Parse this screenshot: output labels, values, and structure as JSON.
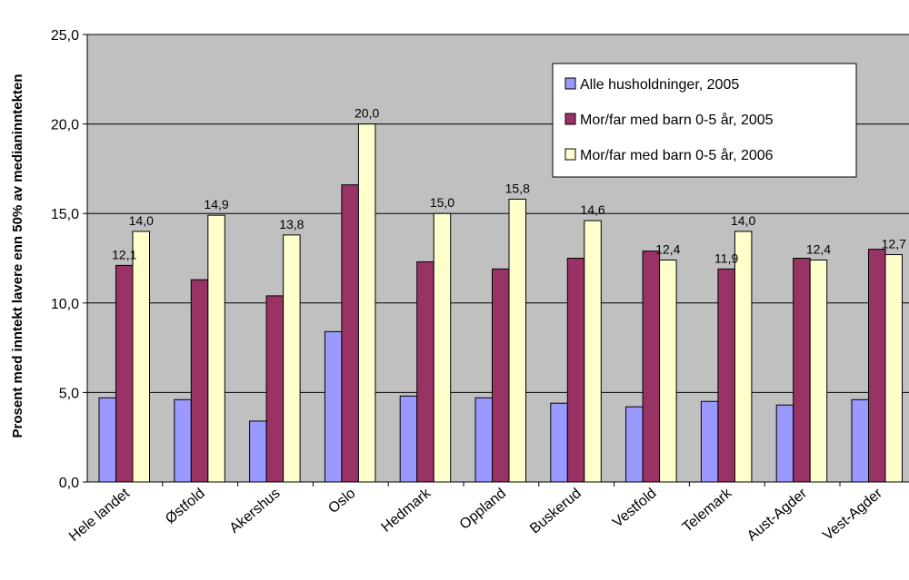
{
  "chart_data": {
    "type": "bar",
    "title": "",
    "xlabel": "",
    "ylabel": "Prosent med inntekt lavere enn 50% av medianinntekten",
    "ylim": [
      0,
      25
    ],
    "yticks": [
      0,
      5,
      10,
      15,
      20,
      25
    ],
    "ytick_labels": [
      "0,0",
      "5,0",
      "10,0",
      "15,0",
      "20,0",
      "25,0"
    ],
    "grid": true,
    "legend_position": "top-right",
    "plot_background": "#C0C0C0",
    "categories": [
      "Hele landet",
      "Østfold",
      "Akershus",
      "Oslo",
      "Hedmark",
      "Oppland",
      "Buskerud",
      "Vestfold",
      "Telemark",
      "Aust-Agder",
      "Vest-Agder"
    ],
    "series": [
      {
        "name": "Alle husholdninger, 2005",
        "color": "#9999FF",
        "values": [
          4.7,
          4.6,
          3.4,
          8.4,
          4.8,
          4.7,
          4.4,
          4.2,
          4.5,
          4.3,
          4.6
        ],
        "labels": [
          "",
          "",
          "",
          "",
          "",
          "",
          "",
          "",
          "",
          "",
          ""
        ]
      },
      {
        "name": "Mor/far med barn 0-5 år, 2005",
        "color": "#993366",
        "values": [
          12.1,
          11.3,
          10.4,
          16.6,
          12.3,
          11.9,
          12.5,
          12.9,
          11.9,
          12.5,
          13.0
        ],
        "labels": [
          "12,1",
          "",
          "",
          "",
          "",
          "",
          "",
          "",
          "11,9",
          "",
          ""
        ]
      },
      {
        "name": "Mor/far med barn 0-5 år, 2006",
        "color": "#FFFFCC",
        "values": [
          14.0,
          14.9,
          13.8,
          20.0,
          15.0,
          15.8,
          14.6,
          12.4,
          14.0,
          12.4,
          12.7
        ],
        "labels": [
          "14,0",
          "14,9",
          "13,8",
          "20,0",
          "15,0",
          "15,8",
          "14,6",
          "12,4",
          "14,0",
          "12,4",
          "12,7"
        ]
      }
    ]
  }
}
